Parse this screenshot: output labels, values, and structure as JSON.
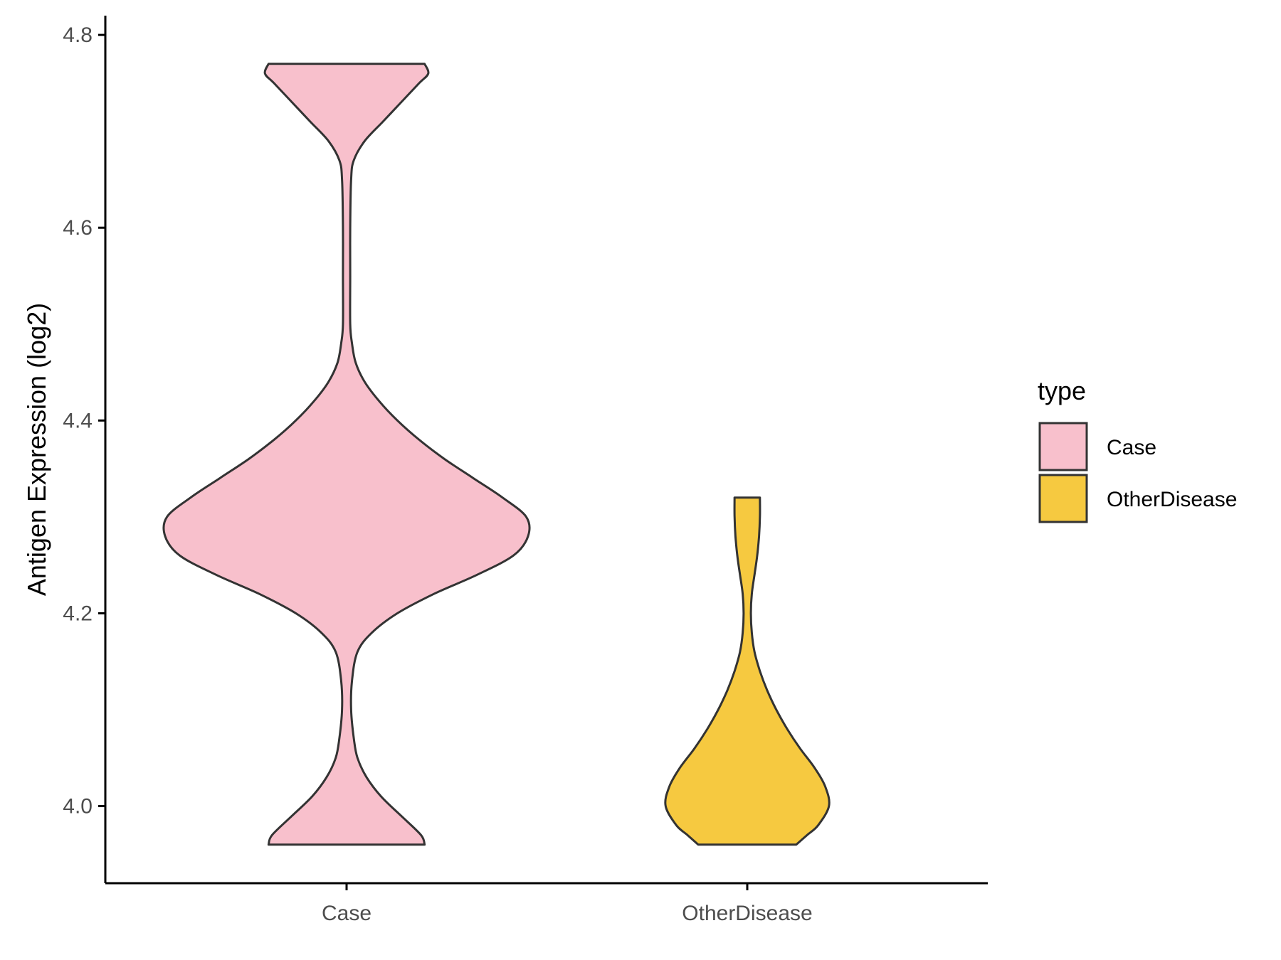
{
  "chart_data": {
    "type": "violin",
    "title": "",
    "xlabel": "",
    "ylabel": "Antigen Expression (log2)",
    "ylim": [
      3.92,
      4.82
    ],
    "y_ticks": [
      "4.0",
      "4.2",
      "4.4",
      "4.6",
      "4.8"
    ],
    "y_tick_values": [
      4.0,
      4.2,
      4.4,
      4.6,
      4.8
    ],
    "categories": [
      "Case",
      "OtherDisease"
    ],
    "grid": false,
    "legend": {
      "title": "type",
      "position": "right",
      "entries": [
        "Case",
        "OtherDisease"
      ]
    },
    "series": [
      {
        "name": "Case",
        "color": "#F8C0CC",
        "ymin": 3.96,
        "ymax": 4.77,
        "profile": [
          [
            3.96,
            0.43
          ],
          [
            3.97,
            0.41
          ],
          [
            3.99,
            0.3
          ],
          [
            4.01,
            0.19
          ],
          [
            4.03,
            0.11
          ],
          [
            4.05,
            0.06
          ],
          [
            4.07,
            0.04
          ],
          [
            4.1,
            0.025
          ],
          [
            4.13,
            0.03
          ],
          [
            4.16,
            0.06
          ],
          [
            4.18,
            0.14
          ],
          [
            4.2,
            0.28
          ],
          [
            4.22,
            0.48
          ],
          [
            4.24,
            0.72
          ],
          [
            4.26,
            0.92
          ],
          [
            4.28,
            1.0
          ],
          [
            4.3,
            0.99
          ],
          [
            4.32,
            0.86
          ],
          [
            4.34,
            0.7
          ],
          [
            4.36,
            0.54
          ],
          [
            4.38,
            0.4
          ],
          [
            4.4,
            0.28
          ],
          [
            4.42,
            0.18
          ],
          [
            4.44,
            0.1
          ],
          [
            4.46,
            0.05
          ],
          [
            4.48,
            0.03
          ],
          [
            4.5,
            0.02
          ],
          [
            4.55,
            0.02
          ],
          [
            4.6,
            0.02
          ],
          [
            4.65,
            0.025
          ],
          [
            4.67,
            0.04
          ],
          [
            4.69,
            0.1
          ],
          [
            4.71,
            0.2
          ],
          [
            4.73,
            0.3
          ],
          [
            4.75,
            0.4
          ],
          [
            4.76,
            0.45
          ],
          [
            4.77,
            0.43
          ]
        ]
      },
      {
        "name": "OtherDisease",
        "color": "#F6C940",
        "ymin": 3.96,
        "ymax": 4.32,
        "profile": [
          [
            3.96,
            0.27
          ],
          [
            3.97,
            0.33
          ],
          [
            3.98,
            0.39
          ],
          [
            4.0,
            0.45
          ],
          [
            4.02,
            0.43
          ],
          [
            4.04,
            0.37
          ],
          [
            4.06,
            0.29
          ],
          [
            4.08,
            0.22
          ],
          [
            4.1,
            0.16
          ],
          [
            4.12,
            0.11
          ],
          [
            4.14,
            0.07
          ],
          [
            4.16,
            0.04
          ],
          [
            4.18,
            0.025
          ],
          [
            4.2,
            0.02
          ],
          [
            4.22,
            0.025
          ],
          [
            4.24,
            0.04
          ],
          [
            4.26,
            0.055
          ],
          [
            4.28,
            0.065
          ],
          [
            4.3,
            0.07
          ],
          [
            4.32,
            0.07
          ]
        ]
      }
    ]
  }
}
